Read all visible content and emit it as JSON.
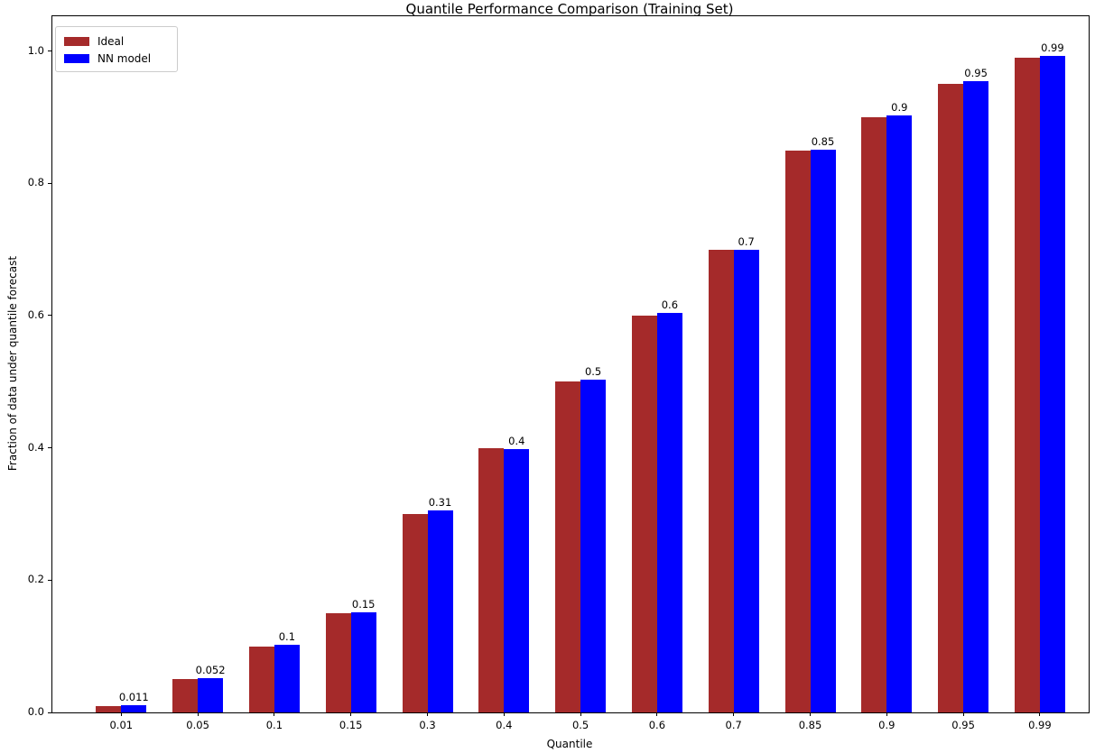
{
  "chart_data": {
    "type": "bar",
    "title": "Quantile Performance Comparison (Training Set)",
    "xlabel": "Quantile",
    "ylabel": "Fraction of data under quantile forecast",
    "categories": [
      "0.01",
      "0.05",
      "0.1",
      "0.15",
      "0.3",
      "0.4",
      "0.5",
      "0.6",
      "0.7",
      "0.85",
      "0.9",
      "0.95",
      "0.99"
    ],
    "series": [
      {
        "name": "Ideal",
        "color": "#a52a2a",
        "values": [
          0.01,
          0.05,
          0.1,
          0.15,
          0.3,
          0.4,
          0.5,
          0.6,
          0.7,
          0.85,
          0.9,
          0.95,
          0.99
        ]
      },
      {
        "name": "NN model",
        "color": "#0000ff",
        "values": [
          0.011,
          0.052,
          0.102,
          0.152,
          0.305,
          0.398,
          0.503,
          0.604,
          0.7,
          0.851,
          0.903,
          0.955,
          0.992
        ]
      }
    ],
    "bar_labels": [
      "0.011",
      "0.052",
      "0.1",
      "0.15",
      "0.31",
      "0.4",
      "0.5",
      "0.6",
      "0.7",
      "0.85",
      "0.9",
      "0.95",
      "0.99"
    ],
    "yticks": [
      "0.0",
      "0.2",
      "0.4",
      "0.6",
      "0.8",
      "1.0"
    ],
    "ylim": [
      0,
      1.05
    ],
    "grid": false,
    "legend_position": "upper-left",
    "axis_color": "#000000",
    "background_color": "#ffffff"
  }
}
